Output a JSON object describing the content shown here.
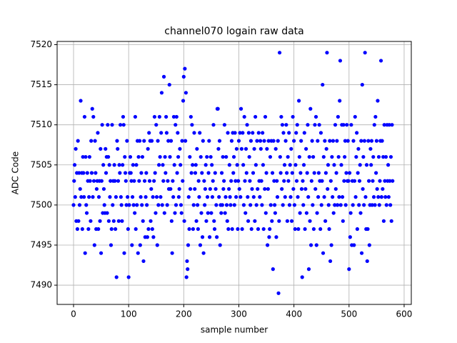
{
  "chart_data": {
    "type": "scatter",
    "title": "channel070 logain raw data",
    "xlabel": "sample number",
    "ylabel": "ADC Code",
    "color": "#0000ff",
    "grid": true,
    "xlim": [
      -29.8,
      613
    ],
    "xticks": [
      0,
      100,
      200,
      300,
      400,
      500,
      600
    ],
    "ylim": [
      7487.6,
      7520.4
    ],
    "yticks": [
      7490,
      7495,
      7500,
      7505,
      7510,
      7515,
      7520
    ],
    "values": [
      7500,
      7503,
      7505,
      7501,
      7507,
      7498,
      7504,
      7497,
      7508,
      7498,
      7504,
      7500,
      7502,
      7513,
      7501,
      7504,
      7497,
      7506,
      7504,
      7501,
      7511,
      7494,
      7506,
      7500,
      7499,
      7504,
      7503,
      7497,
      7501,
      7506,
      7503,
      7498,
      7508,
      7504,
      7512,
      7501,
      7511,
      7503,
      7495,
      7508,
      7504,
      7497,
      7502,
      7503,
      7509,
      7497,
      7501,
      7503,
      7498,
      7507,
      7494,
      7503,
      7510,
      7499,
      7505,
      7502,
      7500,
      7499,
      7507,
      7504,
      7506,
      7499,
      7510,
      7506,
      7498,
      7505,
      7501,
      7503,
      7495,
      7497,
      7510,
      7500,
      7503,
      7498,
      7505,
      7503,
      7497,
      7501,
      7491,
      7508,
      7507,
      7503,
      7498,
      7505,
      7504,
      7510,
      7501,
      7500,
      7498,
      7505,
      7511,
      7510,
      7494,
      7506,
      7504,
      7503,
      7500,
      7508,
      7501,
      7497,
      7491,
      7500,
      7504,
      7506,
      7504,
      7503,
      7495,
      7501,
      7505,
      7500,
      7503,
      7499,
      7511,
      7497,
      7505,
      7500,
      7508,
      7494,
      7506,
      7503,
      7508,
      7495,
      7501,
      7504,
      7500,
      7506,
      7498,
      7493,
      7508,
      7503,
      7496,
      7501,
      7504,
      7500,
      7496,
      7507,
      7497,
      7509,
      7503,
      7508,
      7498,
      7502,
      7508,
      7497,
      7501,
      7496,
      7503,
      7511,
      7504,
      7499,
      7510,
      7501,
      7495,
      7508,
      7500,
      7505,
      7511,
      7506,
      7501,
      7509,
      7514,
      7500,
      7505,
      7503,
      7516,
      7499,
      7506,
      7504,
      7511,
      7509,
      7500,
      7503,
      7508,
      7502,
      7515,
      7506,
      7502,
      7508,
      7498,
      7494,
      7503,
      7501,
      7511,
      7505,
      7499,
      7510,
      7500,
      7511,
      7504,
      7509,
      7506,
      7501,
      7502,
      7507,
      7505,
      7500,
      7499,
      7508,
      7503,
      7513,
      7516,
      7498,
      7517,
      7508,
      7514,
      7491,
      7493,
      7492,
      7495,
      7501,
      7497,
      7506,
      7502,
      7511,
      7504,
      7510,
      7505,
      7497,
      7500,
      7509,
      7502,
      7504,
      7505,
      7498,
      7507,
      7500,
      7497,
      7503,
      7501,
      7509,
      7495,
      7506,
      7499,
      7504,
      7496,
      7508,
      7494,
      7503,
      7500,
      7502,
      7505,
      7498,
      7506,
      7501,
      7499,
      7504,
      7508,
      7496,
      7502,
      7506,
      7499,
      7505,
      7501,
      7503,
      7510,
      7498,
      7497,
      7504,
      7502,
      7500,
      7496,
      7512,
      7512,
      7507,
      7501,
      7508,
      7495,
      7500,
      7499,
      7504,
      7500,
      7506,
      7502,
      7503,
      7510,
      7499,
      7501,
      7506,
      7500,
      7498,
      7509,
      7497,
      7502,
      7505,
      7501,
      7500,
      7503,
      7508,
      7497,
      7509,
      7504,
      7506,
      7500,
      7509,
      7503,
      7501,
      7507,
      7505,
      7497,
      7503,
      7508,
      7502,
      7509,
      7501,
      7512,
      7507,
      7497,
      7509,
      7505,
      7500,
      7511,
      7503,
      7499,
      7507,
      7504,
      7510,
      7501,
      7498,
      7509,
      7506,
      7503,
      7500,
      7508,
      7497,
      7502,
      7509,
      7504,
      7501,
      7507,
      7498,
      7511,
      7505,
      7500,
      7508,
      7502,
      7497,
      7509,
      7503,
      7501,
      7508,
      7507,
      7503,
      7500,
      7509,
      7505,
      7497,
      7508,
      7502,
      7511,
      7499,
      7504,
      7507,
      7495,
      7502,
      7508,
      7496,
      7497,
      7506,
      7500,
      7508,
      7498,
      7504,
      7492,
      7508,
      7503,
      7500,
      7499,
      7507,
      7496,
      7503,
      7501,
      7508,
      7489,
      7498,
      7519,
      7506,
      7504,
      7511,
      7502,
      7510,
      7500,
      7509,
      7503,
      7505,
      7501,
      7508,
      7510,
      7504,
      7498,
      7506,
      7503,
      7509,
      7500,
      7505,
      7501,
      7507,
      7498,
      7504,
      7511,
      7502,
      7508,
      7500,
      7497,
      7505,
      7509,
      7503,
      7510,
      7501,
      7497,
      7513,
      7506,
      7499,
      7504,
      7508,
      7502,
      7491,
      7503,
      7500,
      7505,
      7509,
      7497,
      7502,
      7507,
      7499,
      7504,
      7510,
      7501,
      7492,
      7506,
      7498,
      7512,
      7495,
      7503,
      7508,
      7500,
      7506,
      7497,
      7504,
      7510,
      7502,
      7511,
      7495,
      7499,
      7508,
      7501,
      7504,
      7510,
      7503,
      7497,
      7509,
      7500,
      7503,
      7515,
      7494,
      7506,
      7501,
      7508,
      7498,
      7504,
      7507,
      7519,
      7502,
      7505,
      7500,
      7497,
      7508,
      7493,
      7503,
      7495,
      7506,
      7501,
      7508,
      7499,
      7505,
      7500,
      7510,
      7502,
      7504,
      7508,
      7500,
      7511,
      7506,
      7501,
      7513,
      7518,
      7500,
      7505,
      7510,
      7501,
      7498,
      7510,
      7503,
      7506,
      7508,
      7500,
      7504,
      7510,
      7503,
      7508,
      7503,
      7492,
      7504,
      7496,
      7499,
      7510,
      7495,
      7503,
      7500,
      7508,
      7495,
      7503,
      7511,
      7501,
      7506,
      7509,
      7497,
      7504,
      7507,
      7500,
      7503,
      7505,
      7499,
      7508,
      7494,
      7515,
      7502,
      7506,
      7500,
      7508,
      7519,
      7501,
      7497,
      7505,
      7493,
      7497,
      7508,
      7503,
      7495,
      7500,
      7507,
      7505,
      7508,
      7500,
      7503,
      7506,
      7501,
      7510,
      7500,
      7511,
      7504,
      7508,
      7502,
      7513,
      7501,
      7506,
      7500,
      7503,
      7508,
      7518,
      7501,
      7508,
      7502,
      7506,
      7498,
      7510,
      7503,
      7501,
      7506,
      7500,
      7510,
      7503,
      7505,
      7501,
      7510,
      7503,
      7500,
      7506,
      7498,
      7510,
      7503
    ]
  }
}
